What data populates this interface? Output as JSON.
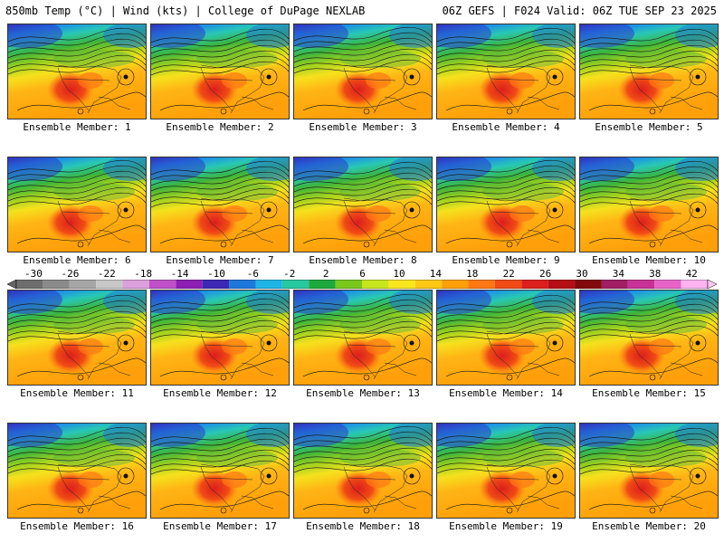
{
  "header": {
    "title": "850mb Temp (°C) | Wind (kts) | College of DuPage NEXLAB",
    "run_info": "06Z GEFS | F024 Valid: 06Z TUE SEP 23 2025"
  },
  "members": [
    {
      "label": "Ensemble Member: 1"
    },
    {
      "label": "Ensemble Member: 2"
    },
    {
      "label": "Ensemble Member: 3"
    },
    {
      "label": "Ensemble Member: 4"
    },
    {
      "label": "Ensemble Member: 5"
    },
    {
      "label": "Ensemble Member: 6"
    },
    {
      "label": "Ensemble Member: 7"
    },
    {
      "label": "Ensemble Member: 8"
    },
    {
      "label": "Ensemble Member: 9"
    },
    {
      "label": "Ensemble Member: 10"
    },
    {
      "label": "Ensemble Member: 11"
    },
    {
      "label": "Ensemble Member: 12"
    },
    {
      "label": "Ensemble Member: 13"
    },
    {
      "label": "Ensemble Member: 14"
    },
    {
      "label": "Ensemble Member: 15"
    },
    {
      "label": "Ensemble Member: 16"
    },
    {
      "label": "Ensemble Member: 17"
    },
    {
      "label": "Ensemble Member: 18"
    },
    {
      "label": "Ensemble Member: 19"
    },
    {
      "label": "Ensemble Member: 20"
    }
  ],
  "colorbar": {
    "labels": [
      "-30",
      "-26",
      "-22",
      "-18",
      "-14",
      "-10",
      "-6",
      "-2",
      "2",
      "6",
      "10",
      "14",
      "18",
      "22",
      "26",
      "30",
      "34",
      "38",
      "42"
    ],
    "colors": [
      "#6e6e6e",
      "#8a8a8a",
      "#a6a6a6",
      "#c8c8c8",
      "#dca0dc",
      "#c050c8",
      "#8c1eb4",
      "#3c28b4",
      "#1e78dc",
      "#1eb4e6",
      "#28c8a0",
      "#1eaa3c",
      "#78c81e",
      "#c8e61e",
      "#fae61e",
      "#ffc814",
      "#ffa00a",
      "#ff7814",
      "#f04b14",
      "#dc1e1e",
      "#b40f14",
      "#820a0a",
      "#a01e64",
      "#c83296",
      "#e664c8",
      "#ffb4f0"
    ]
  }
}
